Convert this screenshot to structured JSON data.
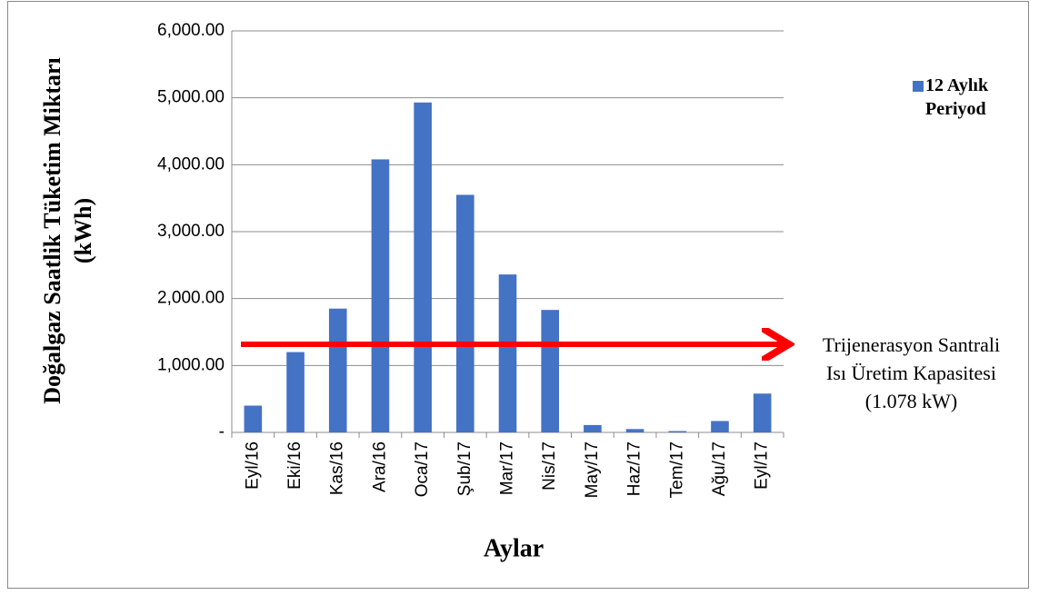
{
  "chart_data": {
    "type": "bar",
    "y_label": "Doğalgaz Saatlik Tüketim Miktarı (kWh)",
    "x_label": "Aylar",
    "annotation": [
      "Trijenerasyon Santrali",
      "Isı Üretim Kapasitesi",
      "(1.078 kW)"
    ],
    "categories": [
      "Eyl/16",
      "Eki/16",
      "Kas/16",
      "Ara/16",
      "Oca/17",
      "Şub/17",
      "Mar/17",
      "Nis/17",
      "May/17",
      "Haz/17",
      "Tem/17",
      "Ağu/17",
      "Eyl/17"
    ],
    "series": [
      {
        "name": "12 Aylık Periyod",
        "color": "#4472c4",
        "values": [
          400,
          1200,
          1850,
          4080,
          4930,
          3550,
          2360,
          1830,
          110,
          50,
          20,
          170,
          580
        ]
      }
    ],
    "ylim": [
      0,
      6000
    ],
    "yticks": [
      {
        "value": 0,
        "label": "-"
      },
      {
        "value": 1000,
        "label": "1,000.00"
      },
      {
        "value": 2000,
        "label": "2,000.00"
      },
      {
        "value": 3000,
        "label": "3,000.00"
      },
      {
        "value": 4000,
        "label": "4,000.00"
      },
      {
        "value": 5000,
        "label": "5,000.00"
      },
      {
        "value": 6000,
        "label": "6,000.00"
      }
    ],
    "grid": true
  }
}
